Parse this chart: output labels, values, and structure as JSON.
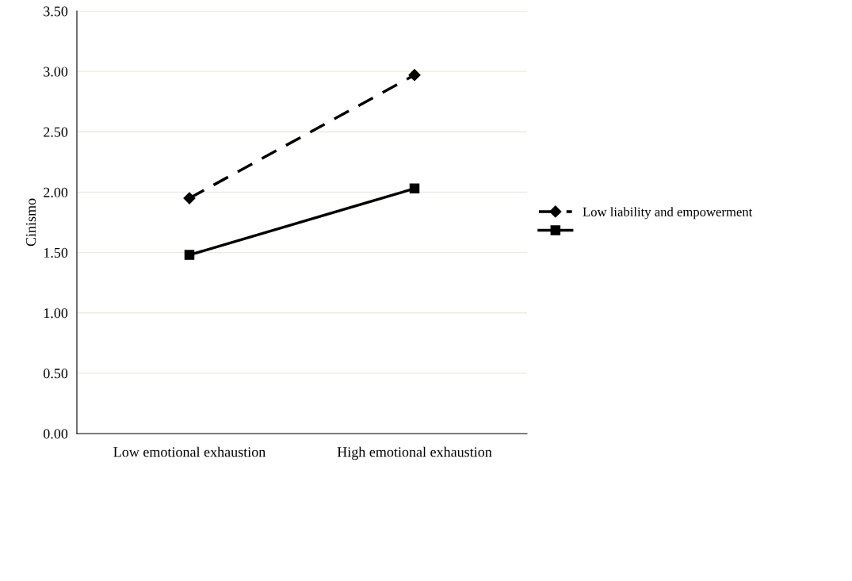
{
  "chart_data": {
    "type": "line",
    "ylabel": "Cinismo",
    "categories": [
      "Low emotional exhaustion",
      "High emotional exhaustion"
    ],
    "series": [
      {
        "name": "Low liability and empowerment",
        "color": "#000000",
        "values": [
          1.95,
          2.97
        ],
        "marker": "diamond",
        "line_style": "dashed"
      },
      {
        "color": "#000000",
        "values": [
          1.48,
          2.03
        ],
        "marker": "square",
        "line_style": "solid"
      }
    ],
    "ylim": [
      0,
      3.5
    ],
    "yticks": [
      {
        "value": 0,
        "label": "0.00"
      },
      {
        "value": 0.5,
        "label": "0.50"
      },
      {
        "value": 1,
        "label": "1.00"
      },
      {
        "value": 1.5,
        "label": "1.50"
      },
      {
        "value": 2,
        "label": "2.00"
      },
      {
        "value": 2.5,
        "label": "2.50"
      },
      {
        "value": 3,
        "label": "3.00"
      },
      {
        "value": 3.5,
        "label": "3.50"
      }
    ],
    "grid": "y",
    "legend": "right"
  }
}
